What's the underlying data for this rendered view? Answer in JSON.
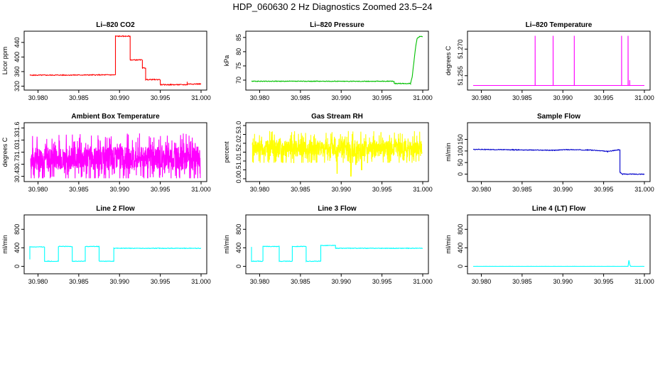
{
  "page": {
    "title": "HDP_060630  2 Hz Diagnostics Zoomed 23.5–24"
  },
  "chart_data": [
    {
      "id": "co2",
      "type": "line",
      "title": "Li–820 CO2",
      "ylabel": "Licor ppm",
      "color": "#ff0000",
      "xlim": [
        30.979,
        31.0
      ],
      "xticks": [
        "30.980",
        "30.985",
        "30.990",
        "30.995",
        "31.000"
      ],
      "ylim": [
        317,
        463
      ],
      "yticks": [
        "320",
        "360",
        "400",
        "440"
      ],
      "series": [
        {
          "name": "CO2",
          "segments": [
            [
              30.979,
              350
            ],
            [
              30.9895,
              351
            ],
            [
              30.9895,
              457
            ],
            [
              30.9913,
              457
            ],
            [
              30.9913,
              392
            ],
            [
              30.9928,
              392
            ],
            [
              30.9928,
              370
            ],
            [
              30.9932,
              370
            ],
            [
              30.9932,
              338
            ],
            [
              30.995,
              338
            ],
            [
              30.995,
              324
            ],
            [
              30.9983,
              324
            ],
            [
              30.9983,
              332
            ],
            [
              30.9983,
              326
            ],
            [
              31.0,
              326
            ]
          ],
          "noise": 1.2
        }
      ]
    },
    {
      "id": "pressure",
      "type": "line",
      "title": "Li–820 Pressure",
      "ylabel": "kPa",
      "color": "#00c000",
      "xlim": [
        30.979,
        31.0
      ],
      "xticks": [
        "30.980",
        "30.985",
        "30.990",
        "30.995",
        "31.000"
      ],
      "ylim": [
        67.5,
        86.2
      ],
      "yticks": [
        "70",
        "75",
        "80",
        "85"
      ],
      "series": [
        {
          "name": "Pressure",
          "segments": [
            [
              30.979,
              69.6
            ],
            [
              30.9965,
              69.6
            ],
            [
              30.9965,
              68.8
            ],
            [
              30.9985,
              68.8
            ],
            [
              30.9987,
              71
            ],
            [
              30.9989,
              76
            ],
            [
              30.9991,
              81
            ],
            [
              30.9993,
              84.6
            ],
            [
              30.9996,
              85.3
            ],
            [
              31.0,
              85.3
            ]
          ],
          "noise": 0.12
        }
      ]
    },
    {
      "id": "temperature",
      "type": "line",
      "title": "Li–820 Temperature",
      "ylabel": "degrees C",
      "color": "#ff00ff",
      "xlim": [
        30.979,
        31.0
      ],
      "xticks": [
        "30.980",
        "30.985",
        "30.990",
        "30.995",
        "31.000"
      ],
      "ylim": [
        51.2485,
        51.2785
      ],
      "yticks": [
        "51.255",
        "51.270"
      ],
      "series": [
        {
          "name": "Temperature",
          "baseline": 51.2495,
          "spikes": [
            [
              30.9866,
              51.2775
            ],
            [
              30.9888,
              51.2775
            ],
            [
              30.9914,
              51.2775
            ],
            [
              30.9972,
              51.2775
            ],
            [
              30.998,
              51.2775
            ],
            [
              30.9982,
              51.2525
            ]
          ]
        }
      ]
    },
    {
      "id": "ambient",
      "type": "line",
      "title": "Ambient Box Temperature",
      "ylabel": "degrees C",
      "color": "#ff00ff",
      "xlim": [
        30.979,
        31.0
      ],
      "xticks": [
        "30.980",
        "30.985",
        "30.990",
        "30.995",
        "31.000"
      ],
      "ylim": [
        30.34,
        31.66
      ],
      "yticks": [
        "30.4",
        "30.7",
        "31.0",
        "31.3",
        "31.6"
      ],
      "series": [
        {
          "name": "Ambient",
          "noiseband": {
            "center": 30.85,
            "min": 30.35,
            "max": 31.6,
            "seed": 7
          }
        }
      ]
    },
    {
      "id": "rh",
      "type": "line",
      "title": "Gas Stream RH",
      "ylabel": "percent",
      "color": "#ffff00",
      "xlim": [
        30.979,
        31.0
      ],
      "xticks": [
        "30.980",
        "30.985",
        "30.990",
        "30.995",
        "31.000"
      ],
      "ylim": [
        0.0,
        3.0
      ],
      "yticks": [
        "0.0",
        "0.5",
        "1.0",
        "1.5",
        "2.0",
        "2.5",
        "3.0"
      ],
      "series": [
        {
          "name": "RH",
          "noiseband": {
            "center": 1.7,
            "min": 0.9,
            "max": 2.9,
            "seed": 13,
            "dips": [
              [
                30.9895,
                0.3
              ],
              [
                30.9912,
                0.15
              ],
              [
                30.9918,
                0.8
              ],
              [
                30.9925,
                0.5
              ]
            ]
          }
        }
      ]
    },
    {
      "id": "sampleflow",
      "type": "line",
      "title": "Sample Flow",
      "ylabel": "ml/min",
      "color": "#0000cc",
      "xlim": [
        30.979,
        31.0
      ],
      "xticks": [
        "30.980",
        "30.985",
        "30.990",
        "30.995",
        "31.000"
      ],
      "ylim": [
        -20,
        210
      ],
      "yticks": [
        "0",
        "50",
        "100",
        "150"
      ],
      "series": [
        {
          "name": "Sample Flow",
          "segments": [
            [
              30.979,
              107
            ],
            [
              30.984,
              105
            ],
            [
              30.989,
              103
            ],
            [
              30.9905,
              106
            ],
            [
              30.9935,
              104
            ],
            [
              30.9955,
              98
            ],
            [
              30.997,
              106
            ],
            [
              30.997,
              8
            ],
            [
              30.9973,
              0
            ],
            [
              31.0,
              0
            ]
          ],
          "noise": 1.5
        }
      ]
    },
    {
      "id": "line2",
      "type": "line",
      "title": "Line 2 Flow",
      "ylabel": "ml/min",
      "color": "#00ffff",
      "xlim": [
        30.979,
        31.0
      ],
      "xticks": [
        "30.980",
        "30.985",
        "30.990",
        "30.995",
        "31.000"
      ],
      "ylim": [
        -100,
        1050
      ],
      "yticks": [
        "0",
        "400",
        "800"
      ],
      "series": [
        {
          "name": "Line 2",
          "segments": [
            [
              30.979,
              150
            ],
            [
              30.979,
              420
            ],
            [
              30.9808,
              420
            ],
            [
              30.9808,
              110
            ],
            [
              30.9825,
              110
            ],
            [
              30.9825,
              430
            ],
            [
              30.9842,
              430
            ],
            [
              30.9842,
              110
            ],
            [
              30.9858,
              110
            ],
            [
              30.9858,
              430
            ],
            [
              30.9875,
              430
            ],
            [
              30.9875,
              110
            ],
            [
              30.9893,
              110
            ],
            [
              30.9893,
              390
            ],
            [
              31.0,
              390
            ]
          ],
          "noise": 6
        }
      ]
    },
    {
      "id": "line3",
      "type": "line",
      "title": "Line 3 Flow",
      "ylabel": "ml/min",
      "color": "#00ffff",
      "xlim": [
        30.979,
        31.0
      ],
      "xticks": [
        "30.980",
        "30.985",
        "30.990",
        "30.995",
        "31.000"
      ],
      "ylim": [
        -100,
        1050
      ],
      "yticks": [
        "0",
        "400",
        "800"
      ],
      "series": [
        {
          "name": "Line 3",
          "segments": [
            [
              30.979,
              420
            ],
            [
              30.979,
              110
            ],
            [
              30.9804,
              110
            ],
            [
              30.9804,
              430
            ],
            [
              30.9824,
              430
            ],
            [
              30.9824,
              110
            ],
            [
              30.984,
              110
            ],
            [
              30.984,
              430
            ],
            [
              30.9857,
              430
            ],
            [
              30.9857,
              110
            ],
            [
              30.9875,
              110
            ],
            [
              30.9875,
              450
            ],
            [
              30.9893,
              450
            ],
            [
              30.9893,
              390
            ],
            [
              31.0,
              390
            ]
          ],
          "noise": 6
        }
      ]
    },
    {
      "id": "line4",
      "type": "line",
      "title": "Line 4 (LT) Flow",
      "ylabel": "ml/min",
      "color": "#00ffff",
      "xlim": [
        30.979,
        31.0
      ],
      "xticks": [
        "30.980",
        "30.985",
        "30.990",
        "30.995",
        "31.000"
      ],
      "ylim": [
        -100,
        1050
      ],
      "yticks": [
        "0",
        "400",
        "800"
      ],
      "series": [
        {
          "name": "Line 4",
          "segments": [
            [
              30.979,
              0
            ],
            [
              30.998,
              0
            ],
            [
              30.9981,
              130
            ],
            [
              30.9982,
              40
            ],
            [
              30.9983,
              0
            ],
            [
              31.0,
              0
            ]
          ],
          "noise": 1
        }
      ]
    }
  ]
}
